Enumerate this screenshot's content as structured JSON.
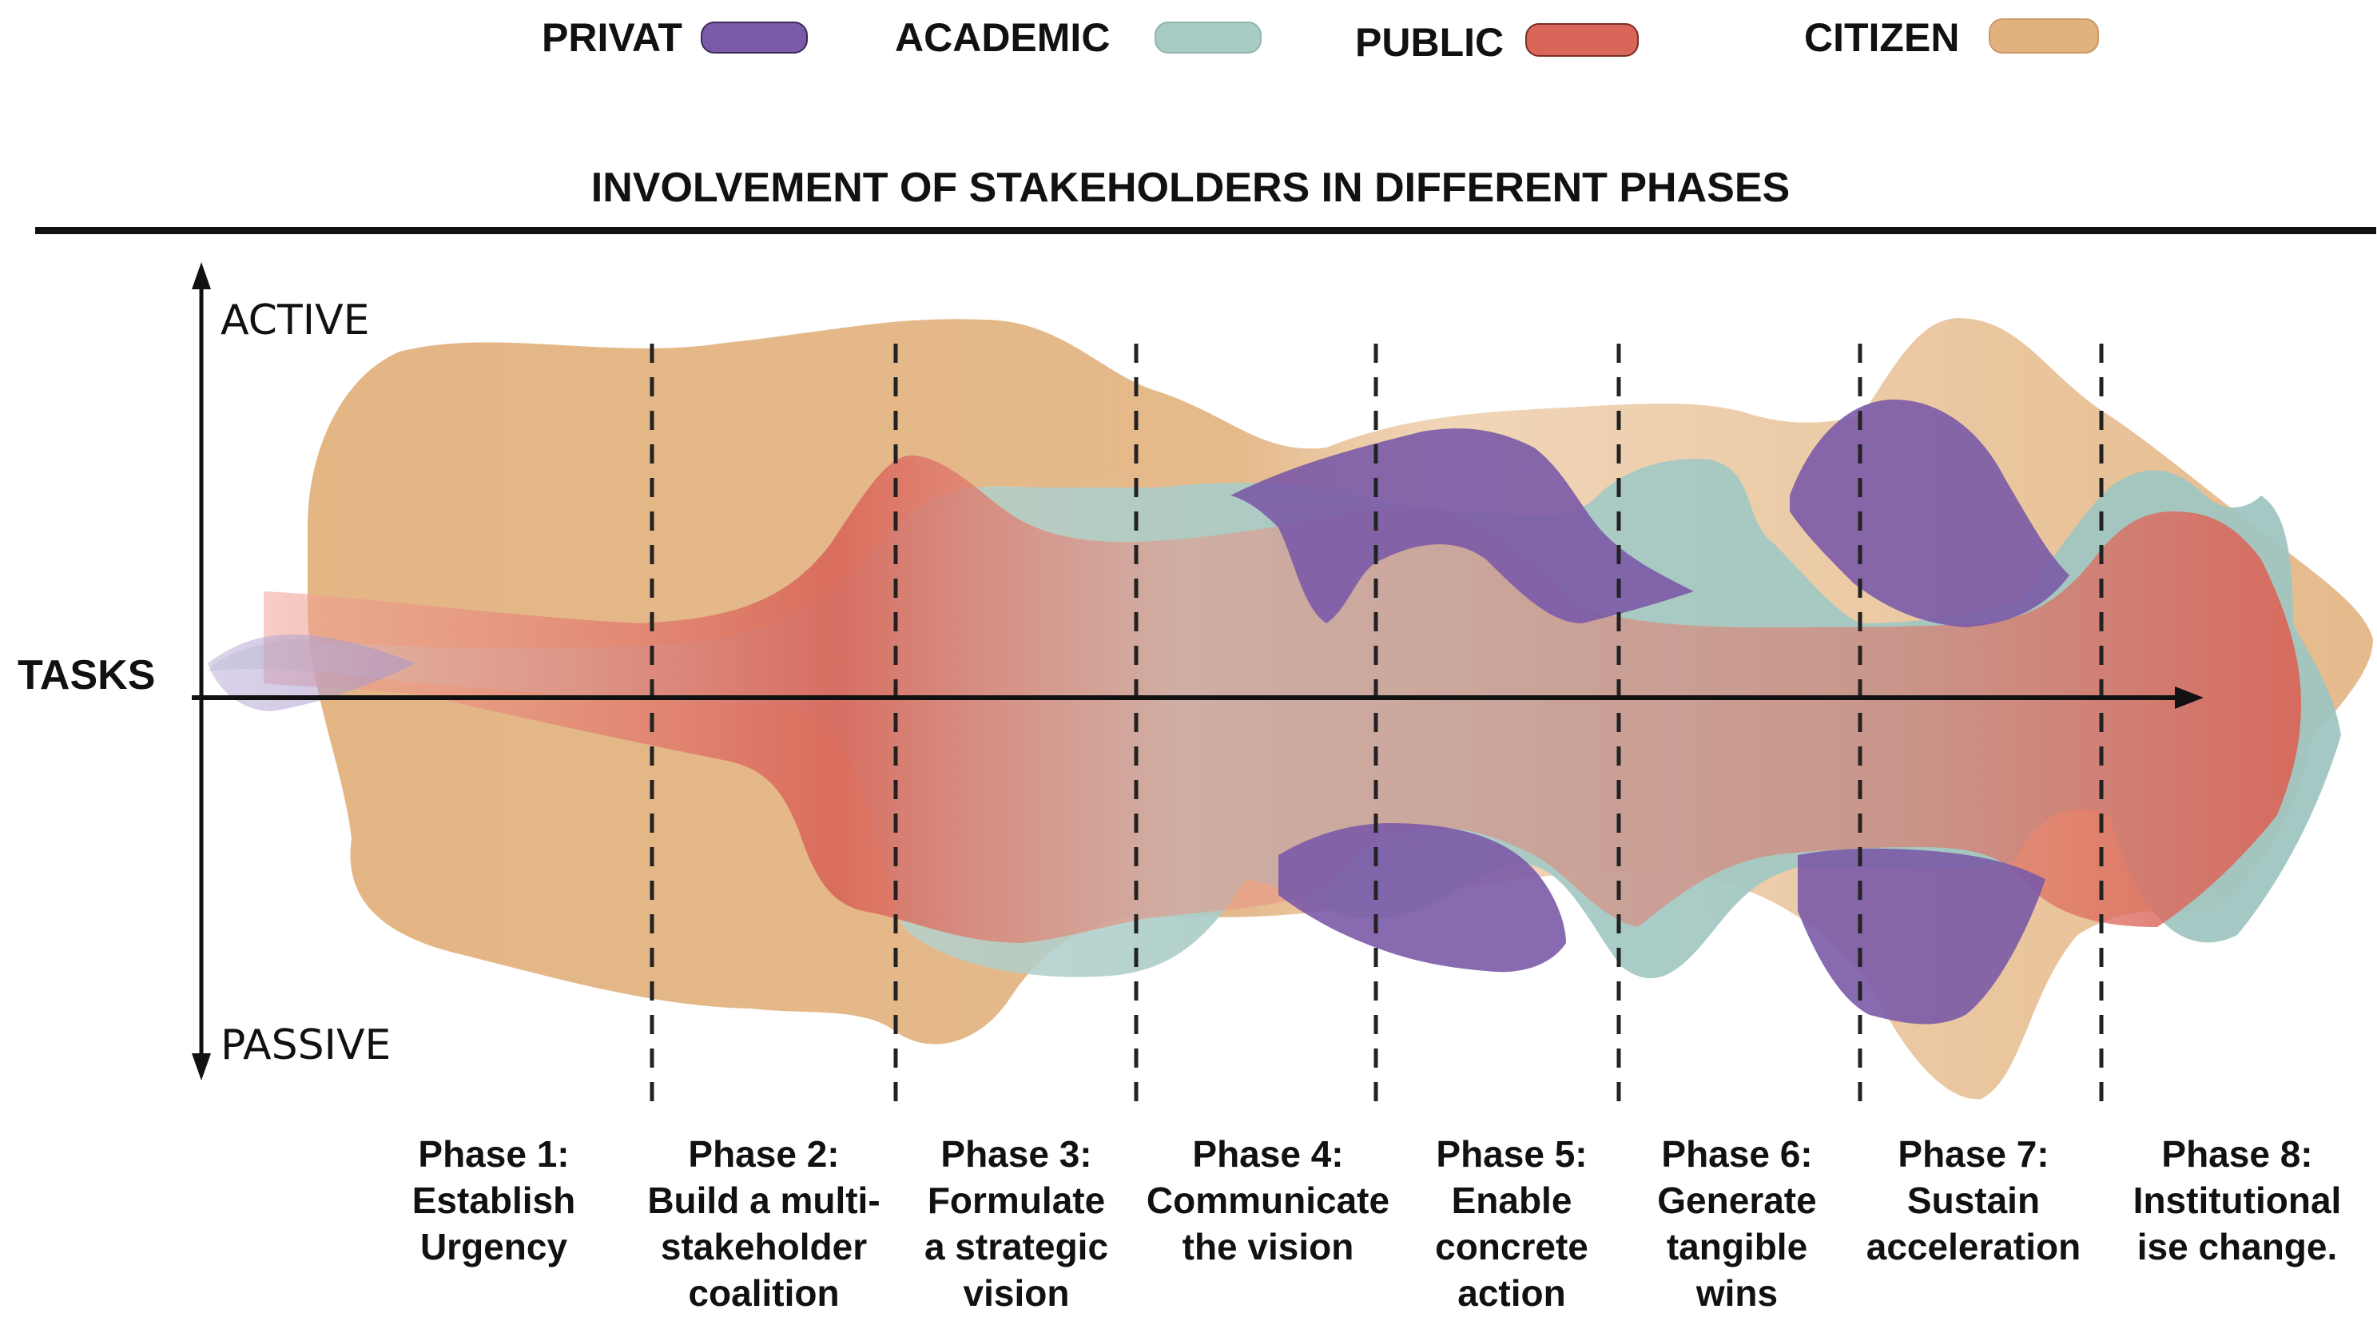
{
  "chart_data": {
    "type": "area",
    "title": "INVOLVEMENT OF STAKEHOLDERS IN DIFFERENT PHASES",
    "y_axis": {
      "top_label": "ACTIVE",
      "bottom_label": "PASSIVE"
    },
    "x_axis": {
      "label": "TASKS"
    },
    "legend": [
      {
        "name": "PRIVAT",
        "color": "#7b5aa8"
      },
      {
        "name": "ACADEMIC",
        "color": "#a9cbc6"
      },
      {
        "name": "PUBLIC",
        "color": "#d9665a"
      },
      {
        "name": "CITIZEN",
        "color": "#e2b27e"
      }
    ],
    "phases": [
      {
        "number": "Phase 1:",
        "lines": [
          "Establish",
          "Urgency"
        ]
      },
      {
        "number": "Phase 2:",
        "lines": [
          "Build a multi-",
          "stakeholder",
          "coalition"
        ]
      },
      {
        "number": "Phase 3:",
        "lines": [
          "Formulate",
          "a strategic",
          "vision"
        ]
      },
      {
        "number": "Phase 4:",
        "lines": [
          "Communicate",
          "the vision"
        ]
      },
      {
        "number": "Phase 5:",
        "lines": [
          "Enable",
          "concrete",
          "action"
        ]
      },
      {
        "number": "Phase 6:",
        "lines": [
          "Generate",
          "tangible",
          "wins"
        ]
      },
      {
        "number": "Phase 7:",
        "lines": [
          "Sustain",
          "acceleration"
        ]
      },
      {
        "number": "Phase 8:",
        "lines": [
          "Institutional",
          "ise change."
        ]
      }
    ],
    "series": [
      {
        "name": "CITIZEN",
        "color": "#e2b27e",
        "involvement": [
          0.85,
          0.9,
          0.95,
          0.65,
          0.7,
          0.72,
          1.0,
          0.45
        ]
      },
      {
        "name": "ACADEMIC",
        "color": "#a9cbc6",
        "involvement": [
          0.1,
          0.15,
          0.55,
          0.5,
          0.25,
          0.6,
          0.2,
          0.6
        ]
      },
      {
        "name": "PUBLIC",
        "color": "#d9665a",
        "involvement": [
          0.15,
          0.25,
          0.6,
          0.3,
          0.35,
          0.2,
          0.15,
          0.7
        ]
      },
      {
        "name": "PRIVAT",
        "color": "#7b5aa8",
        "involvement": [
          0.02,
          0.05,
          0.05,
          0.25,
          0.65,
          0.1,
          0.8,
          0.1
        ]
      }
    ]
  }
}
